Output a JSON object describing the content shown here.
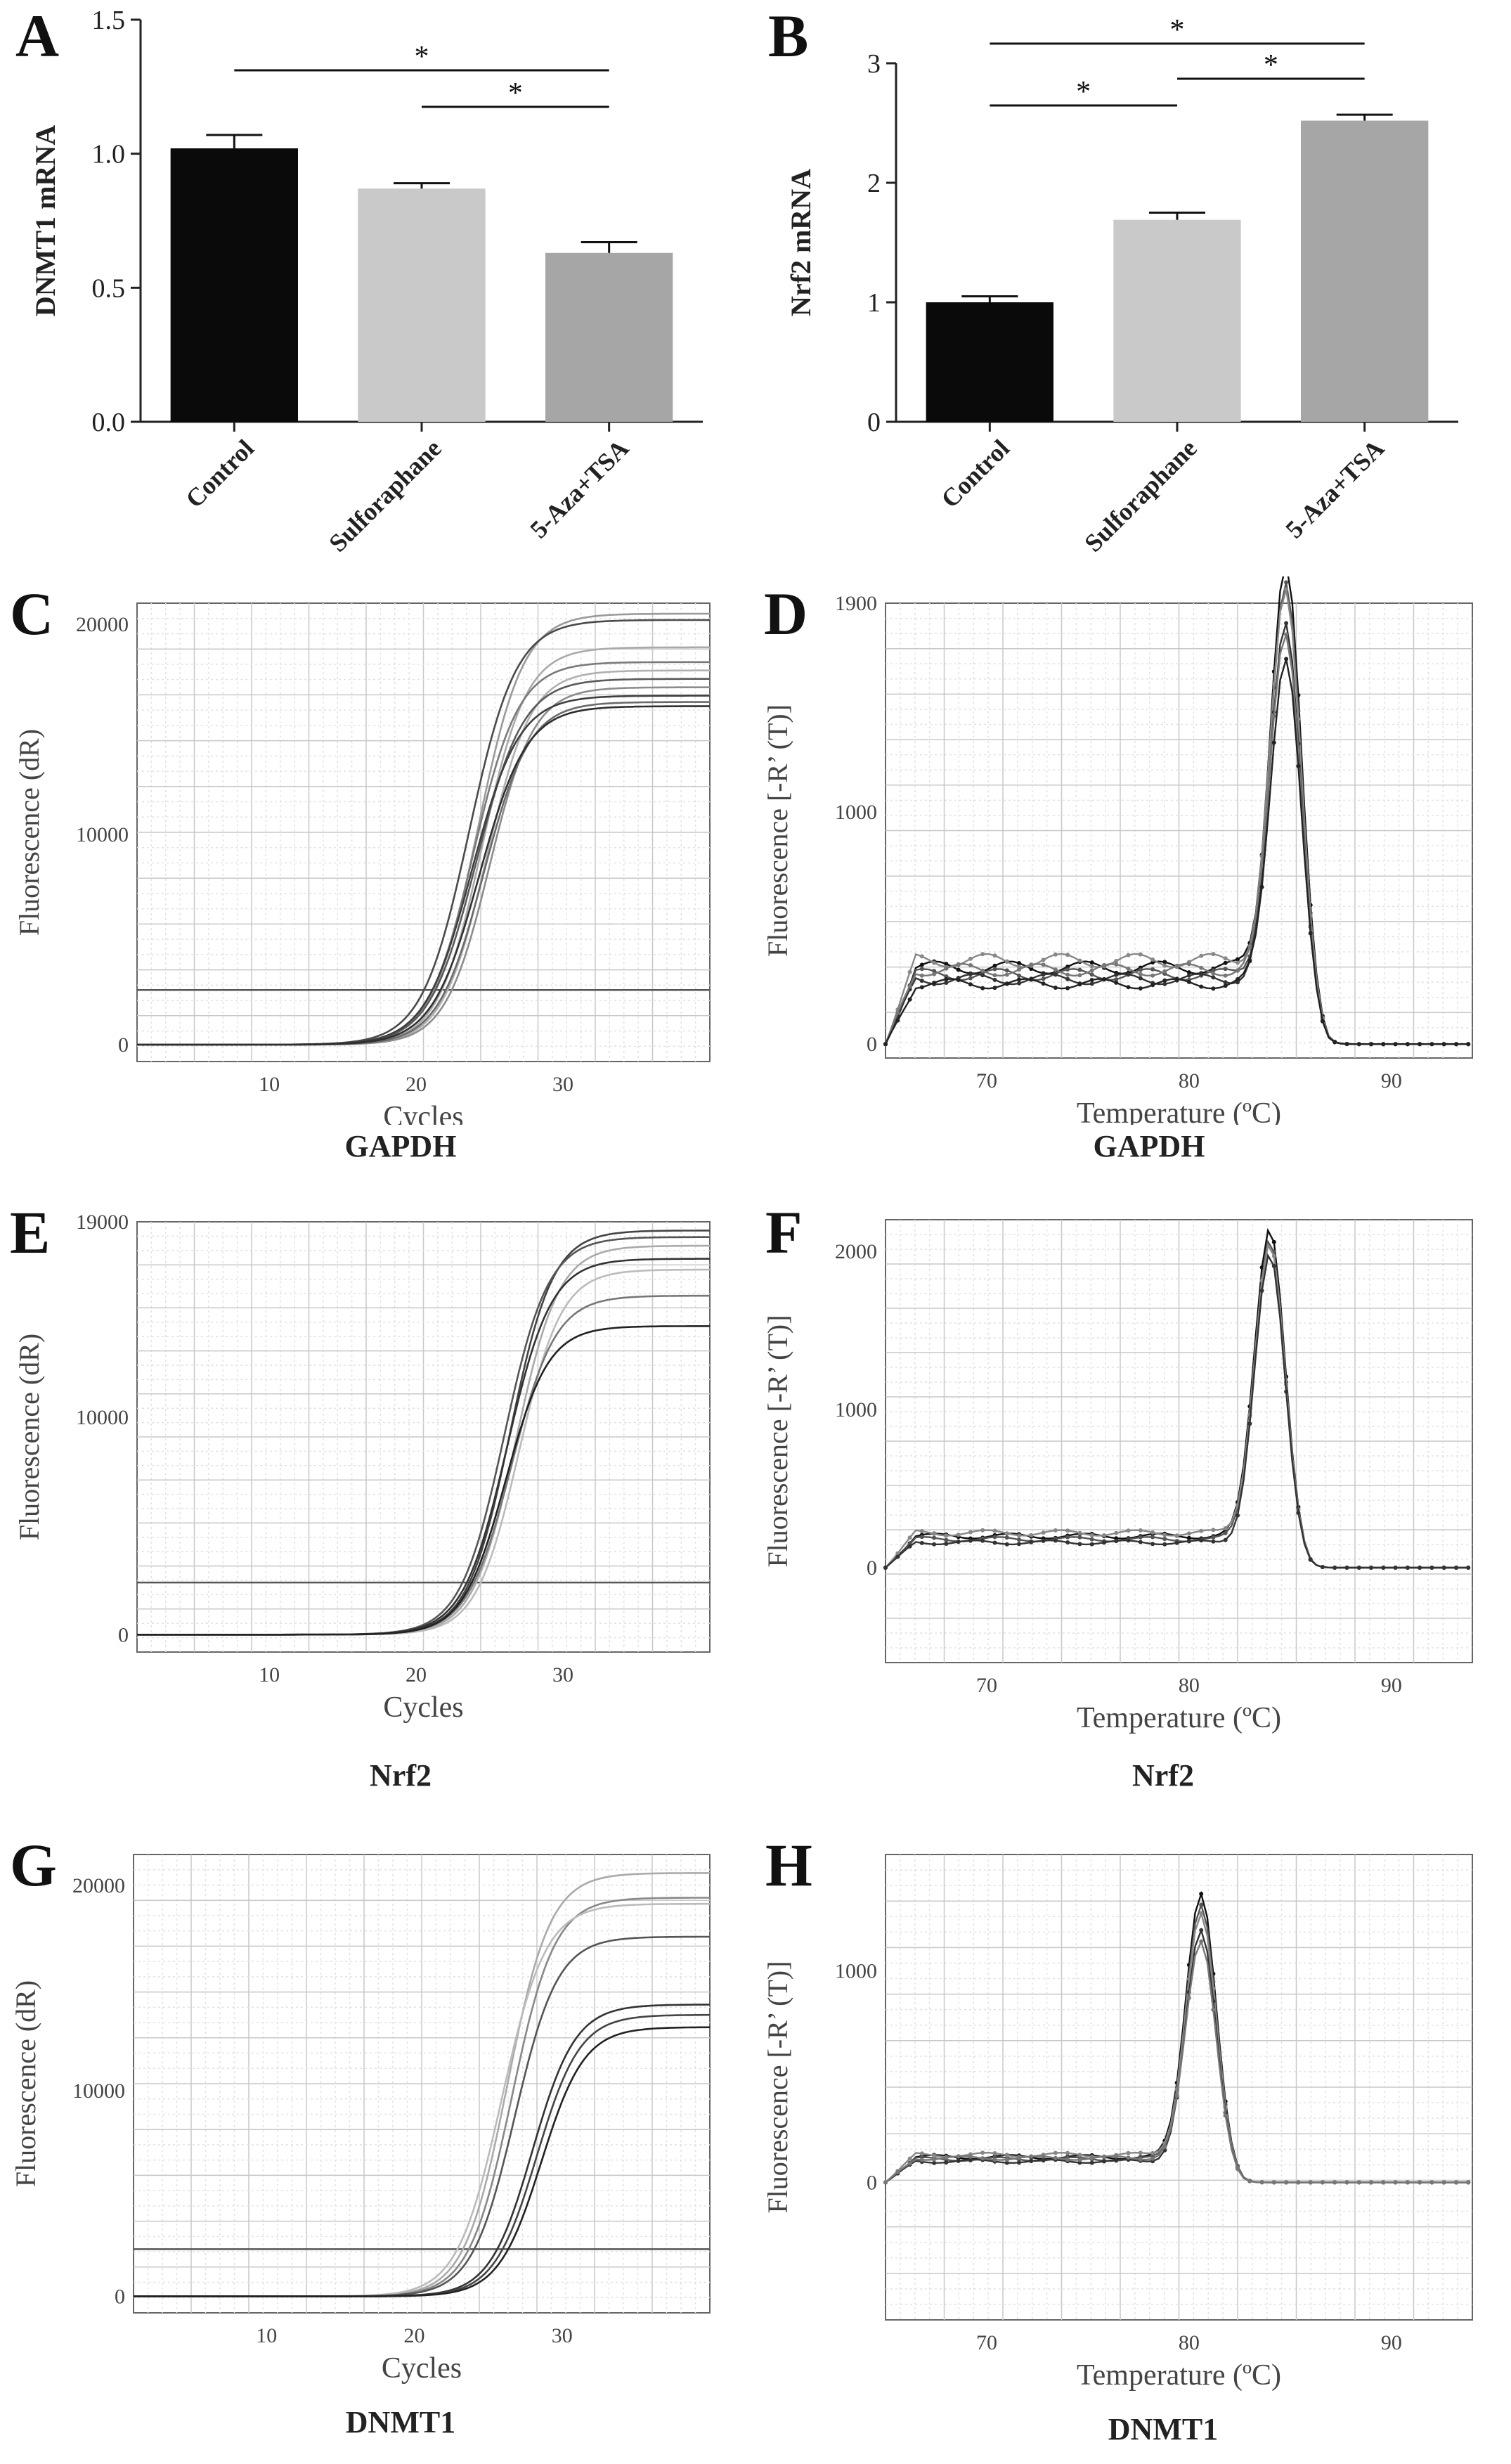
{
  "panels": {
    "A": {
      "letter": "A",
      "ylabel": "DNMT1 mRNA",
      "caption": ""
    },
    "B": {
      "letter": "B",
      "ylabel": "Nrf2 mRNA",
      "caption": ""
    },
    "C": {
      "letter": "C",
      "caption": "GAPDH"
    },
    "D": {
      "letter": "D",
      "caption": "GAPDH"
    },
    "E": {
      "letter": "E",
      "caption": "Nrf2"
    },
    "F": {
      "letter": "F",
      "caption": "Nrf2"
    },
    "G": {
      "letter": "G",
      "caption": "DNMT1"
    },
    "H": {
      "letter": "H",
      "caption": "DNMT1"
    }
  },
  "chart_data": [
    {
      "id": "A",
      "type": "bar",
      "categories": [
        "Control",
        "Sulforaphane",
        "5-Aza+TSA"
      ],
      "values": [
        1.02,
        0.87,
        0.63
      ],
      "errors": [
        0.05,
        0.02,
        0.04
      ],
      "colors": [
        "#0a0a0a",
        "#c9c9c9",
        "#a6a6a6"
      ],
      "ylabel": "DNMT1 mRNA",
      "ylim": [
        0,
        1.5
      ],
      "yticks": [
        "0.0",
        "0.5",
        "1.0",
        "1.5"
      ],
      "significance": [
        {
          "from": 0,
          "to": 2,
          "label": "*"
        },
        {
          "from": 1,
          "to": 2,
          "label": "*"
        }
      ]
    },
    {
      "id": "B",
      "type": "bar",
      "categories": [
        "Control",
        "Sulforaphane",
        "5-Aza+TSA"
      ],
      "values": [
        1.0,
        1.69,
        2.52
      ],
      "errors": [
        0.05,
        0.06,
        0.05
      ],
      "colors": [
        "#0a0a0a",
        "#c9c9c9",
        "#a6a6a6"
      ],
      "ylabel": "Nrf2 mRNA",
      "ylim": [
        0,
        3
      ],
      "yticks": [
        "0",
        "1",
        "2",
        "3"
      ],
      "significance": [
        {
          "from": 0,
          "to": 2,
          "label": "*"
        },
        {
          "from": 0,
          "to": 1,
          "label": "*"
        },
        {
          "from": 1,
          "to": 2,
          "label": "*"
        }
      ]
    },
    {
      "id": "C",
      "type": "line",
      "xlabel": "Cycles",
      "ylabel": "Fluorescence (dR)",
      "xlim": [
        1,
        40
      ],
      "ylim": [
        -800,
        21000
      ],
      "xticks": [
        "10",
        "20",
        "30"
      ],
      "yticks": [
        "0",
        "10000",
        "20000"
      ],
      "threshold": 2600,
      "series": [
        {
          "plateau": 20500,
          "midpoint": 24.2,
          "slope": 1.55,
          "tone": "#9a9a9a"
        },
        {
          "plateau": 20200,
          "midpoint": 23.6,
          "slope": 1.6,
          "tone": "#4a4a4a"
        },
        {
          "plateau": 18900,
          "midpoint": 24.5,
          "slope": 1.5,
          "tone": "#aaaaaa"
        },
        {
          "plateau": 18200,
          "midpoint": 23.9,
          "slope": 1.55,
          "tone": "#7a7a7a"
        },
        {
          "plateau": 17800,
          "midpoint": 24.8,
          "slope": 1.5,
          "tone": "#b0b0b0"
        },
        {
          "plateau": 17400,
          "midpoint": 24.1,
          "slope": 1.6,
          "tone": "#5a5a5a"
        },
        {
          "plateau": 17000,
          "midpoint": 25.0,
          "slope": 1.5,
          "tone": "#8c8c8c"
        },
        {
          "plateau": 16600,
          "midpoint": 23.8,
          "slope": 1.6,
          "tone": "#3e3e3e"
        },
        {
          "plateau": 16300,
          "midpoint": 24.6,
          "slope": 1.55,
          "tone": "#6a6a6a"
        },
        {
          "plateau": 16100,
          "midpoint": 24.3,
          "slope": 1.6,
          "tone": "#2f2f2f"
        }
      ]
    },
    {
      "id": "D",
      "type": "line",
      "xlabel": "Temperature (ºC)",
      "ylabel": "Fluorescence [-R’ (T)]",
      "xlim": [
        65,
        94
      ],
      "ylim": [
        -60,
        1900
      ],
      "xticks": [
        "70",
        "80",
        "90"
      ],
      "yticks": [
        "0",
        "1000",
        "1900"
      ],
      "peak_temperature": 84.8,
      "series": [
        {
          "peak": 1860,
          "baseline": 330,
          "tone": "#111111"
        },
        {
          "peak": 1780,
          "baseline": 300,
          "tone": "#555555"
        },
        {
          "peak": 1700,
          "baseline": 360,
          "tone": "#888888"
        },
        {
          "peak": 1620,
          "baseline": 280,
          "tone": "#333333"
        },
        {
          "peak": 1560,
          "baseline": 320,
          "tone": "#777777"
        },
        {
          "peak": 1500,
          "baseline": 260,
          "tone": "#222222"
        }
      ]
    },
    {
      "id": "E",
      "type": "line",
      "xlabel": "Cycles",
      "ylabel": "Fluorescence (dR)",
      "xlim": [
        1,
        40
      ],
      "ylim": [
        -800,
        19000
      ],
      "xticks": [
        "10",
        "20",
        "30"
      ],
      "yticks": [
        "0",
        "10000",
        "19000"
      ],
      "threshold": 2400,
      "series": [
        {
          "plateau": 18600,
          "midpoint": 26.4,
          "slope": 1.45,
          "tone": "#444444"
        },
        {
          "plateau": 18300,
          "midpoint": 26.0,
          "slope": 1.5,
          "tone": "#555555"
        },
        {
          "plateau": 17900,
          "midpoint": 26.8,
          "slope": 1.45,
          "tone": "#aaaaaa"
        },
        {
          "plateau": 17300,
          "midpoint": 26.2,
          "slope": 1.5,
          "tone": "#333333"
        },
        {
          "plateau": 16800,
          "midpoint": 27.0,
          "slope": 1.45,
          "tone": "#bbbbbb"
        },
        {
          "plateau": 15600,
          "midpoint": 26.5,
          "slope": 1.5,
          "tone": "#777777"
        },
        {
          "plateau": 14200,
          "midpoint": 26.1,
          "slope": 1.45,
          "tone": "#222222"
        }
      ]
    },
    {
      "id": "F",
      "type": "line",
      "xlabel": "Temperature (ºC)",
      "ylabel": "Fluorescence [-R’ (T)]",
      "xlim": [
        65,
        94
      ],
      "ylim": [
        -600,
        2200
      ],
      "xticks": [
        "70",
        "80",
        "90"
      ],
      "yticks": [
        "0",
        "1000",
        "2000"
      ],
      "peak_temperature": 84.0,
      "series": [
        {
          "peak": 2020,
          "baseline": 200,
          "tone": "#111111"
        },
        {
          "peak": 1960,
          "baseline": 180,
          "tone": "#555555"
        },
        {
          "peak": 1900,
          "baseline": 220,
          "tone": "#888888"
        },
        {
          "peak": 1870,
          "baseline": 160,
          "tone": "#333333"
        }
      ]
    },
    {
      "id": "G",
      "type": "line",
      "xlabel": "Cycles",
      "ylabel": "Fluorescence (dR)",
      "xlim": [
        1,
        40
      ],
      "ylim": [
        -800,
        21500
      ],
      "xticks": [
        "10",
        "20",
        "30"
      ],
      "yticks": [
        "0",
        "10000",
        "20000"
      ],
      "threshold": 2300,
      "series": [
        {
          "plateau": 20600,
          "midpoint": 26.3,
          "slope": 1.45,
          "tone": "#aaaaaa"
        },
        {
          "plateau": 19400,
          "midpoint": 26.6,
          "slope": 1.45,
          "tone": "#888888"
        },
        {
          "plateau": 19100,
          "midpoint": 25.9,
          "slope": 1.5,
          "tone": "#bbbbbb"
        },
        {
          "plateau": 17500,
          "midpoint": 26.8,
          "slope": 1.45,
          "tone": "#555555"
        },
        {
          "plateau": 14200,
          "midpoint": 28.0,
          "slope": 1.45,
          "tone": "#333333"
        },
        {
          "plateau": 13700,
          "midpoint": 28.3,
          "slope": 1.45,
          "tone": "#444444"
        },
        {
          "plateau": 13100,
          "midpoint": 28.6,
          "slope": 1.45,
          "tone": "#222222"
        }
      ]
    },
    {
      "id": "H",
      "type": "line",
      "xlabel": "Temperature (ºC)",
      "ylabel": "Fluorescence [-R’ (T)]",
      "xlim": [
        65,
        94
      ],
      "ylim": [
        -650,
        1550
      ],
      "xticks": [
        "70",
        "80",
        "90"
      ],
      "yticks": [
        "0",
        "1000"
      ],
      "peak_temperature": 80.6,
      "series": [
        {
          "peak": 1290,
          "baseline": 120,
          "tone": "#111111"
        },
        {
          "peak": 1240,
          "baseline": 110,
          "tone": "#555555"
        },
        {
          "peak": 1180,
          "baseline": 130,
          "tone": "#888888"
        },
        {
          "peak": 1120,
          "baseline": 100,
          "tone": "#333333"
        },
        {
          "peak": 1060,
          "baseline": 115,
          "tone": "#777777"
        }
      ]
    }
  ]
}
